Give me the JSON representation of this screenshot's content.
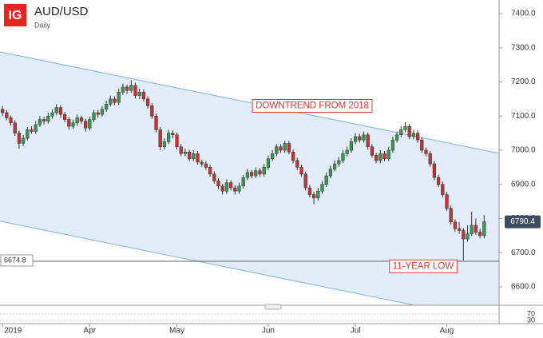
{
  "header": {
    "logo": "IG",
    "title": "AUD/USD",
    "subtitle": "Daily"
  },
  "chart_data": {
    "type": "candlestick",
    "candles": [
      [
        7120,
        7130,
        7100,
        7110
      ],
      [
        7110,
        7118,
        7088,
        7095
      ],
      [
        7095,
        7102,
        7072,
        7080
      ],
      [
        7080,
        7088,
        7042,
        7050
      ],
      [
        7050,
        7058,
        7005,
        7020
      ],
      [
        7020,
        7045,
        7012,
        7035
      ],
      [
        7035,
        7068,
        7028,
        7060
      ],
      [
        7060,
        7070,
        7048,
        7055
      ],
      [
        7055,
        7085,
        7048,
        7075
      ],
      [
        7075,
        7100,
        7068,
        7090
      ],
      [
        7090,
        7098,
        7075,
        7085
      ],
      [
        7085,
        7110,
        7078,
        7100
      ],
      [
        7100,
        7120,
        7092,
        7110
      ],
      [
        7110,
        7135,
        7102,
        7125
      ],
      [
        7125,
        7132,
        7095,
        7105
      ],
      [
        7105,
        7112,
        7082,
        7090
      ],
      [
        7090,
        7098,
        7060,
        7070
      ],
      [
        7070,
        7090,
        7062,
        7080
      ],
      [
        7080,
        7105,
        7072,
        7095
      ],
      [
        7095,
        7102,
        7078,
        7085
      ],
      [
        7085,
        7092,
        7055,
        7065
      ],
      [
        7065,
        7098,
        7058,
        7090
      ],
      [
        7090,
        7118,
        7082,
        7110
      ],
      [
        7110,
        7118,
        7095,
        7105
      ],
      [
        7105,
        7130,
        7098,
        7120
      ],
      [
        7120,
        7145,
        7112,
        7135
      ],
      [
        7135,
        7160,
        7128,
        7150
      ],
      [
        7150,
        7158,
        7132,
        7140
      ],
      [
        7140,
        7180,
        7132,
        7170
      ],
      [
        7170,
        7195,
        7162,
        7185
      ],
      [
        7185,
        7192,
        7165,
        7175
      ],
      [
        7175,
        7205,
        7168,
        7190
      ],
      [
        7190,
        7198,
        7152,
        7160
      ],
      [
        7160,
        7180,
        7150,
        7170
      ],
      [
        7170,
        7178,
        7142,
        7150
      ],
      [
        7150,
        7158,
        7122,
        7130
      ],
      [
        7130,
        7138,
        7092,
        7100
      ],
      [
        7100,
        7108,
        7052,
        7060
      ],
      [
        7060,
        7068,
        7000,
        7010
      ],
      [
        7010,
        7035,
        7002,
        7025
      ],
      [
        7025,
        7060,
        7018,
        7050
      ],
      [
        7050,
        7058,
        7035,
        7045
      ],
      [
        7045,
        7052,
        7002,
        7010
      ],
      [
        7010,
        7018,
        6982,
        6990
      ],
      [
        6990,
        7005,
        6982,
        6995
      ],
      [
        6995,
        7002,
        6968,
        6975
      ],
      [
        6975,
        7000,
        6968,
        6990
      ],
      [
        6990,
        6998,
        6958,
        6965
      ],
      [
        6965,
        6972,
        6952,
        6960
      ],
      [
        6960,
        6968,
        6942,
        6950
      ],
      [
        6950,
        6958,
        6922,
        6930
      ],
      [
        6930,
        6938,
        6902,
        6910
      ],
      [
        6910,
        6918,
        6885,
        6895
      ],
      [
        6895,
        6902,
        6870,
        6880
      ],
      [
        6880,
        6915,
        6872,
        6905
      ],
      [
        6905,
        6912,
        6882,
        6890
      ],
      [
        6890,
        6898,
        6870,
        6880
      ],
      [
        6880,
        6905,
        6872,
        6895
      ],
      [
        6895,
        6928,
        6888,
        6920
      ],
      [
        6920,
        6945,
        6912,
        6935
      ],
      [
        6935,
        6942,
        6918,
        6925
      ],
      [
        6925,
        6950,
        6918,
        6940
      ],
      [
        6940,
        6948,
        6922,
        6930
      ],
      [
        6930,
        6960,
        6922,
        6950
      ],
      [
        6950,
        6985,
        6942,
        6975
      ],
      [
        6975,
        7000,
        6968,
        6990
      ],
      [
        6990,
        7018,
        6982,
        7010
      ],
      [
        7010,
        7018,
        6992,
        7000
      ],
      [
        7000,
        7028,
        6992,
        7020
      ],
      [
        7020,
        7028,
        6988,
        6995
      ],
      [
        6995,
        7002,
        6962,
        6970
      ],
      [
        6970,
        6978,
        6942,
        6950
      ],
      [
        6950,
        6958,
        6922,
        6930
      ],
      [
        6930,
        6938,
        6882,
        6890
      ],
      [
        6890,
        6898,
        6862,
        6870
      ],
      [
        6870,
        6878,
        6842,
        6860
      ],
      [
        6860,
        6890,
        6852,
        6880
      ],
      [
        6880,
        6910,
        6872,
        6900
      ],
      [
        6900,
        6935,
        6892,
        6925
      ],
      [
        6925,
        6955,
        6918,
        6945
      ],
      [
        6945,
        6970,
        6938,
        6960
      ],
      [
        6960,
        6980,
        6952,
        6970
      ],
      [
        6970,
        7000,
        6962,
        6990
      ],
      [
        6990,
        7010,
        6982,
        7000
      ],
      [
        7000,
        7035,
        6992,
        7025
      ],
      [
        7025,
        7050,
        7018,
        7040
      ],
      [
        7040,
        7048,
        7022,
        7030
      ],
      [
        7030,
        7055,
        7022,
        7045
      ],
      [
        7045,
        7052,
        7002,
        7010
      ],
      [
        7010,
        7018,
        6978,
        6985
      ],
      [
        6985,
        6992,
        6962,
        6970
      ],
      [
        6970,
        7000,
        6962,
        6990
      ],
      [
        6990,
        6998,
        6968,
        6975
      ],
      [
        6975,
        7010,
        6968,
        7000
      ],
      [
        7000,
        7040,
        6992,
        7030
      ],
      [
        7030,
        7055,
        7022,
        7045
      ],
      [
        7045,
        7070,
        7038,
        7060
      ],
      [
        7060,
        7082,
        7052,
        7070
      ],
      [
        7070,
        7078,
        7032,
        7040
      ],
      [
        7040,
        7060,
        7032,
        7050
      ],
      [
        7050,
        7058,
        7022,
        7030
      ],
      [
        7030,
        7038,
        6992,
        7000
      ],
      [
        7000,
        7008,
        6982,
        6990
      ],
      [
        6990,
        6998,
        6952,
        6960
      ],
      [
        6960,
        6968,
        6912,
        6920
      ],
      [
        6920,
        6928,
        6892,
        6900
      ],
      [
        6900,
        6908,
        6862,
        6870
      ],
      [
        6870,
        6878,
        6822,
        6830
      ],
      [
        6830,
        6838,
        6782,
        6790
      ],
      [
        6790,
        6798,
        6762,
        6770
      ],
      [
        6770,
        6790,
        6755,
        6765
      ],
      [
        6765,
        6772,
        6677,
        6740
      ],
      [
        6740,
        6780,
        6732,
        6755
      ],
      [
        6755,
        6820,
        6748,
        6780
      ],
      [
        6780,
        6800,
        6752,
        6760
      ],
      [
        6760,
        6770,
        6742,
        6750
      ],
      [
        6750,
        6810,
        6742,
        6790.4
      ]
    ],
    "up_color": "#3a9a4c",
    "down_color": "#c8322f",
    "xlim": [
      -0.6,
      119.6
    ],
    "xticks": [
      {
        "value": 0,
        "label": "2019"
      },
      {
        "value": 21,
        "label": "Apr"
      },
      {
        "value": 42,
        "label": "May"
      },
      {
        "value": 64,
        "label": "Jun"
      },
      {
        "value": 85,
        "label": "Jul"
      },
      {
        "value": 107,
        "label": "Aug"
      }
    ],
    "ylim": [
      6546,
      7440
    ],
    "yticks": [
      {
        "value": 6600,
        "label": "6600.0"
      },
      {
        "value": 6700,
        "label": "6700.0"
      },
      {
        "value": 6800,
        "label": "6800.0"
      },
      {
        "value": 6900,
        "label": "6900.0"
      },
      {
        "value": 7000,
        "label": "7000.0"
      },
      {
        "value": 7100,
        "label": "7100.0"
      },
      {
        "value": 7200,
        "label": "7200.0"
      },
      {
        "value": 7300,
        "label": "7300.0"
      },
      {
        "value": 7400,
        "label": "7400.0"
      }
    ],
    "channel": {
      "upper": [
        [
          -0.6,
          7288
        ],
        [
          119.6,
          6991
        ]
      ],
      "lower": [
        [
          -0.6,
          6792
        ],
        [
          119.6,
          6496
        ]
      ],
      "color": "#7fb2dd"
    },
    "low_line": 6674.8,
    "annotations": [
      {
        "text": "DOWNTREND FROM 2018",
        "x": 60,
        "y": 7130
      },
      {
        "text": "11-YEAR LOW",
        "x": 93,
        "y": 6660
      }
    ],
    "oscillator": {
      "ylim": [
        0,
        100
      ],
      "yticks": [
        70,
        30
      ]
    }
  }
}
